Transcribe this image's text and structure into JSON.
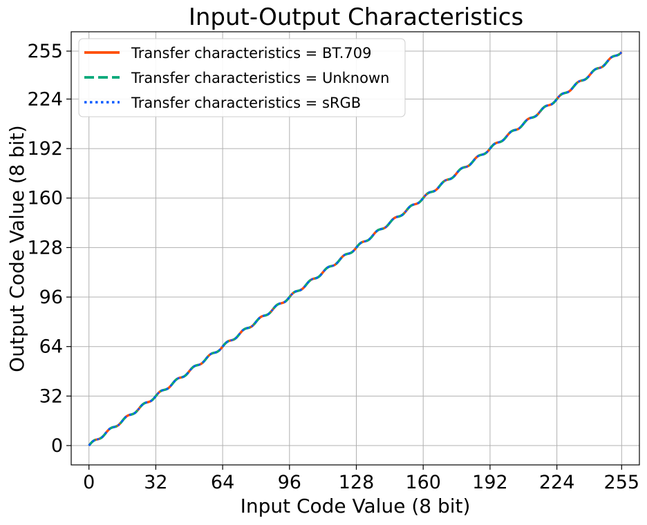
{
  "chart_data": {
    "type": "line",
    "title": "Input-Output Characteristics",
    "xlabel": "Input Code Value (8 bit)",
    "ylabel": "Output Code Value (8 bit)",
    "xlim": [
      -8.5,
      263.5
    ],
    "ylim": [
      -12.5,
      267.5
    ],
    "xticks": [
      0,
      32,
      64,
      96,
      128,
      160,
      192,
      224,
      255
    ],
    "yticks": [
      0,
      32,
      64,
      96,
      128,
      160,
      192,
      224,
      255
    ],
    "grid": true,
    "legend_position": "top-left",
    "x": [
      0,
      255
    ],
    "series": [
      {
        "name": "Transfer characteristics = BT.709",
        "values": [
          0,
          255
        ],
        "color": "#ff4d00",
        "style": "solid"
      },
      {
        "name": "Transfer characteristics = Unknown",
        "values": [
          0,
          255
        ],
        "color": "#00a878",
        "style": "dashed"
      },
      {
        "name": "Transfer characteristics = sRGB",
        "values": [
          0,
          255
        ],
        "color": "#0b5cff",
        "style": "dotted"
      }
    ]
  }
}
